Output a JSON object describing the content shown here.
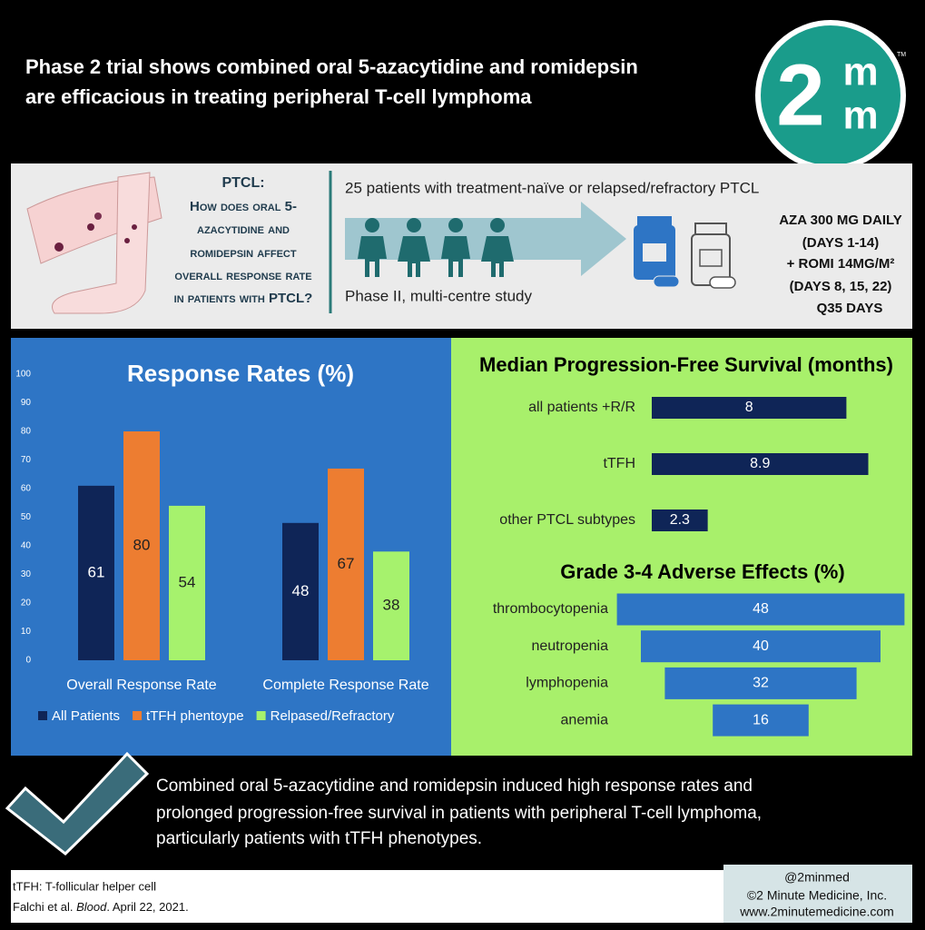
{
  "header": {
    "title": [
      "Phase 2 trial shows combined oral 5-azacytidine and romidepsin",
      "are efficacious in treating peripheral T-cell lymphoma"
    ],
    "logo": {
      "digit": "2",
      "top": "m",
      "bottom": "m",
      "mark": "TM"
    }
  },
  "study": {
    "question_title": "PTCL:",
    "question": [
      "How does oral 5-",
      "azacytidine and",
      "romidepsin affect",
      "overall response rate",
      "in patients with PTCL?"
    ],
    "population": "25 patients with treatment-naïve or relapsed/refractory PTCL",
    "design": "Phase II, multi-centre study",
    "regimen": [
      "AZA 300 MG DAILY",
      "(DAYS 1-14)",
      "+ ROMI 14MG/M²",
      "(DAYS 8, 15, 22)",
      "Q35 DAYS"
    ]
  },
  "chart_data": [
    {
      "type": "bar",
      "title": "Response Rates (%)",
      "categories": [
        "Overall Response Rate",
        "Complete Response Rate"
      ],
      "series": [
        {
          "name": "All Patients",
          "color": "#0f2557",
          "values": [
            61,
            48
          ]
        },
        {
          "name": "tTFH phentoype",
          "color": "#ed7d31",
          "values": [
            80,
            67
          ]
        },
        {
          "name": "Relpased/Refractory",
          "color": "#a6f26d",
          "values": [
            54,
            38
          ]
        }
      ],
      "ylim": [
        0,
        100
      ],
      "yticks": [
        0,
        10,
        20,
        30,
        40,
        50,
        60,
        70,
        80,
        90,
        100
      ],
      "grid": false,
      "legend": "bottom"
    },
    {
      "type": "hbar",
      "title": "Median Progression-Free Survival (months)",
      "categories": [
        "all patients +R/R",
        "tTFH",
        "other PTCL subtypes"
      ],
      "values": [
        8,
        8.9,
        2.3
      ],
      "color": "#0f2557"
    },
    {
      "type": "funnel",
      "title": "Grade 3-4 Adverse Effects (%)",
      "categories": [
        "thrombocytopenia",
        "neutropenia",
        "lymphopenia",
        "anemia"
      ],
      "values": [
        48,
        40,
        32,
        16
      ],
      "color": "#2e75c5"
    }
  ],
  "conclusion": [
    "Combined oral 5-azacytidine and romidepsin induced high response rates and",
    "prolonged progression-free survival in patients with peripheral T-cell lymphoma,",
    "particularly patients with tTFH phenotypes."
  ],
  "footer": {
    "notes": [
      "tTFH: T-follicular helper cell",
      [
        "Falchi et al. ",
        "Blood",
        ". April 22, 2021."
      ]
    ],
    "credits": [
      "@2minmed",
      "©2 Minute Medicine, Inc.",
      "www.2minutemedicine.com"
    ]
  }
}
